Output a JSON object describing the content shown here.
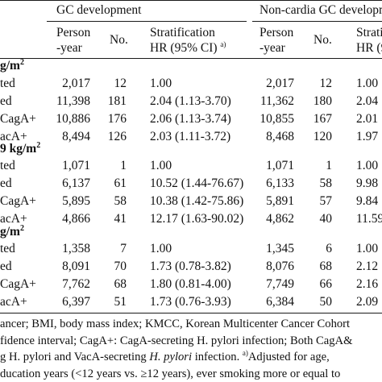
{
  "header": {
    "gc_title": "GC development",
    "noncardia_title": "Non-cardia GC developm",
    "col_person_1": "Person",
    "col_person_2": "-year",
    "col_no": "No.",
    "col_strat_1": "Stratification",
    "col_strat_2": "HR (95% CI)",
    "col_strat_sup": "a)",
    "col_person2_1": "Person",
    "col_person2_2": "-year",
    "col_no2": "No.",
    "col_strat2_1": "Strati",
    "col_strat2_2": "HR (9"
  },
  "groups": [
    {
      "label": "g/m",
      "sup": "2",
      "rows": [
        {
          "label": "ted",
          "py": "2,017",
          "no": "12",
          "hr": "1.00",
          "py2": "2,017",
          "no2": "12",
          "hr2": "1.00"
        },
        {
          "label": "ed",
          "py": "11,398",
          "no": "181",
          "hr": "2.04 (1.13-3.70)",
          "py2": "11,362",
          "no2": "180",
          "hr2": "2.04"
        },
        {
          "label": " CagA+",
          "py": "10,886",
          "no": "176",
          "hr": "2.06 (1.13-3.74)",
          "py2": "10,855",
          "no2": "167",
          "hr2": "2.01"
        },
        {
          "label": "acA+",
          "py": "8,494",
          "no": "126",
          "hr": "2.03 (1.11-3.72)",
          "py2": "8,468",
          "no2": "120",
          "hr2": "1.97"
        }
      ]
    },
    {
      "label": "9 kg/m",
      "sup": "2",
      "rows": [
        {
          "label": "ted",
          "py": "1,071",
          "no": "1",
          "hr": "1.00",
          "py2": "1,071",
          "no2": "1",
          "hr2": "1.00"
        },
        {
          "label": "ed",
          "py": "6,137",
          "no": "61",
          "hr": "10.52 (1.44-76.67)",
          "py2": "6,133",
          "no2": "58",
          "hr2": "9.98"
        },
        {
          "label": " CagA+",
          "py": "5,895",
          "no": "58",
          "hr": "10.38 (1.42-75.86)",
          "py2": "5,891",
          "no2": "57",
          "hr2": "9.84"
        },
        {
          "label": "acA+",
          "py": "4,866",
          "no": "41",
          "hr": "12.17 (1.63-90.02)",
          "py2": "4,862",
          "no2": "40",
          "hr2": "11.59"
        }
      ]
    },
    {
      "label": "g/m",
      "sup": "2",
      "rows": [
        {
          "label": "ted",
          "py": "1,358",
          "no": "7",
          "hr": "1.00",
          "py2": "1,345",
          "no2": "6",
          "hr2": "1.00"
        },
        {
          "label": "ed",
          "py": "8,091",
          "no": "70",
          "hr": "1.73 (0.78-3.82)",
          "py2": "8,076",
          "no2": "68",
          "hr2": "2.12"
        },
        {
          "label": " CagA+",
          "py": "7,762",
          "no": "68",
          "hr": "1.80 (0.81-4.00)",
          "py2": "7,749",
          "no2": "66",
          "hr2": "2.16"
        },
        {
          "label": "acA+",
          "py": "6,397",
          "no": "51",
          "hr": "1.73 (0.76-3.93)",
          "py2": "6,384",
          "no2": "50",
          "hr2": "2.09"
        }
      ]
    }
  ],
  "footnote": {
    "line1": "ancer; BMI, body mass index; KMCC, Korean Multicenter Cancer Cohort",
    "line2": "fidence interval; CagA+: CagA-secreting H. pylori infection; Both CagA&",
    "line3_pre": "g H. pylori and VacA-secreting ",
    "line3_italic": "H. pylori",
    "line3_post": " infection. ",
    "line3_sup": "a)",
    "line3_end": "Adjusted for age,",
    "line4": "ducation years (<12 years vs. ≥12 years), ever smoking more or equal to"
  }
}
